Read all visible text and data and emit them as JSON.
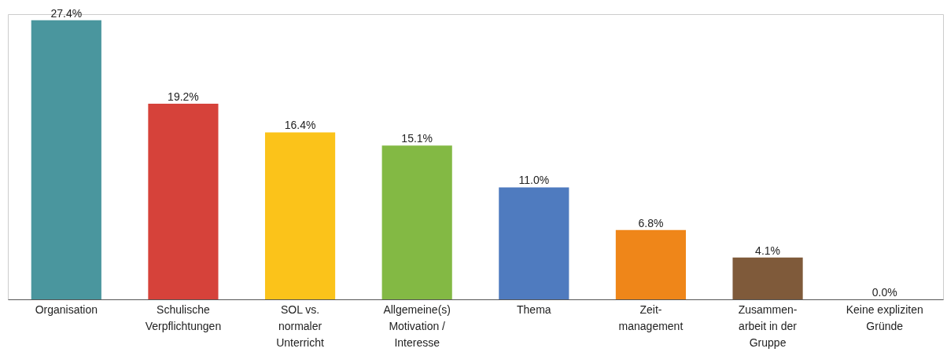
{
  "chart_data": {
    "type": "bar",
    "categories": [
      "Organisation",
      "Schulische\nVerpflichtungen",
      "SOL vs.\nnormaler\nUnterricht",
      "Allgemeine(s)\nMotivation /\nInteresse",
      "Thema",
      "Zeit-\nmanagement",
      "Zusammen-\narbeit in der\nGruppe",
      "Keine expliziten\nGründe"
    ],
    "values": [
      27.4,
      19.2,
      16.4,
      15.1,
      11.0,
      6.8,
      4.1,
      0.0
    ],
    "colors": [
      "#4a969e",
      "#d6423a",
      "#fbc31a",
      "#83b944",
      "#4f7bbf",
      "#ef8619",
      "#7f5a3a",
      "#999999"
    ],
    "value_labels": [
      "27.4%",
      "19.2%",
      "16.4%",
      "15.1%",
      "11.0%",
      "6.8%",
      "4.1%",
      "0.0%"
    ],
    "relative": false
  }
}
